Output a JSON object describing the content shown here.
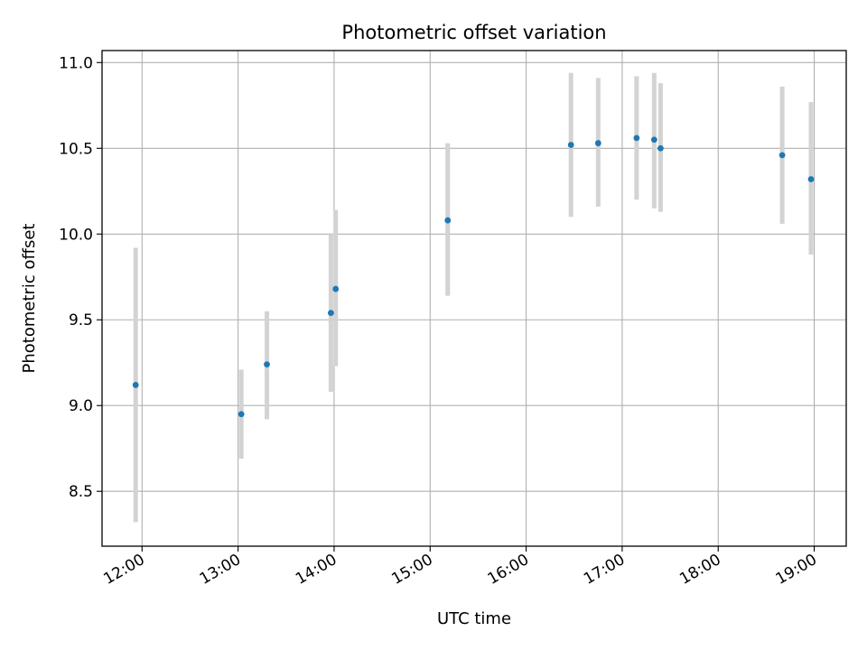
{
  "chart_data": {
    "type": "scatter",
    "title": "Photometric offset variation",
    "xlabel": "UTC time",
    "ylabel": "Photometric offset",
    "x_tick_labels": [
      "12:00",
      "13:00",
      "14:00",
      "15:00",
      "16:00",
      "17:00",
      "18:00",
      "19:00"
    ],
    "x_ticks_hours": [
      12,
      13,
      14,
      15,
      16,
      17,
      18,
      19
    ],
    "y_tick_labels": [
      "8.5",
      "9.0",
      "9.5",
      "10.0",
      "10.5",
      "11.0"
    ],
    "y_ticks": [
      8.5,
      9.0,
      9.5,
      10.0,
      10.5,
      11.0
    ],
    "xlim": [
      "11:35",
      "19:20"
    ],
    "ylim": [
      8.18,
      11.07
    ],
    "grid": true,
    "series": [
      {
        "marker_color": "#1f77b4",
        "errorbar_color": "#d3d3d3",
        "points": [
          {
            "x": "11:56",
            "y": 9.12,
            "y_low": 8.32,
            "y_high": 9.92
          },
          {
            "x": "13:02",
            "y": 8.95,
            "y_low": 8.69,
            "y_high": 9.21
          },
          {
            "x": "13:18",
            "y": 9.24,
            "y_low": 8.92,
            "y_high": 9.55
          },
          {
            "x": "13:58",
            "y": 9.54,
            "y_low": 9.08,
            "y_high": 10.0
          },
          {
            "x": "14:01",
            "y": 9.68,
            "y_low": 9.23,
            "y_high": 10.14
          },
          {
            "x": "15:11",
            "y": 10.08,
            "y_low": 9.64,
            "y_high": 10.53
          },
          {
            "x": "16:28",
            "y": 10.52,
            "y_low": 10.1,
            "y_high": 10.94
          },
          {
            "x": "16:45",
            "y": 10.53,
            "y_low": 10.16,
            "y_high": 10.91
          },
          {
            "x": "17:09",
            "y": 10.56,
            "y_low": 10.2,
            "y_high": 10.92
          },
          {
            "x": "17:20",
            "y": 10.55,
            "y_low": 10.15,
            "y_high": 10.94
          },
          {
            "x": "17:24",
            "y": 10.5,
            "y_low": 10.13,
            "y_high": 10.88
          },
          {
            "x": "18:40",
            "y": 10.46,
            "y_low": 10.06,
            "y_high": 10.86
          },
          {
            "x": "18:58",
            "y": 10.32,
            "y_low": 9.88,
            "y_high": 10.77
          }
        ]
      }
    ]
  }
}
